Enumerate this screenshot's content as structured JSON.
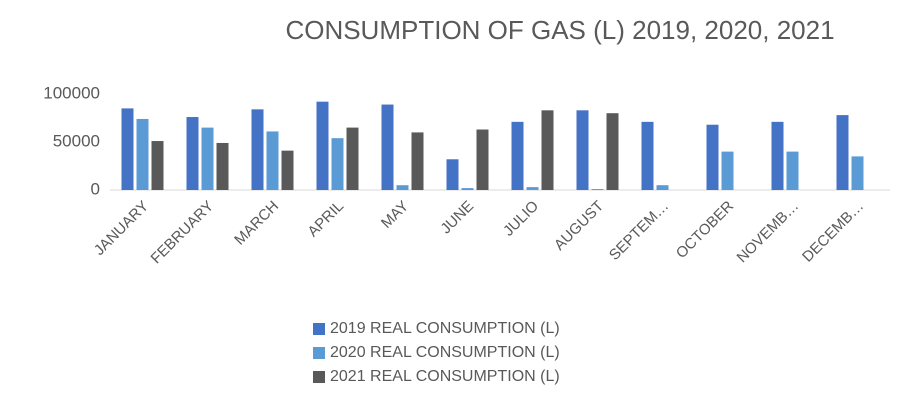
{
  "chart_data": {
    "type": "bar",
    "title": "CONSUMPTION OF GAS (L) 2019, 2020, 2021",
    "categories": [
      "JANUARY",
      "FEBRUARY",
      "MARCH",
      "APRIL",
      "MAY",
      "JUNE",
      "JULIO",
      "AUGUST",
      "SEPTEM…",
      "OCTOBER",
      "NOVEMB…",
      "DECEMB…"
    ],
    "series": [
      {
        "name": "2019 REAL CONSUMPTION (L)",
        "color": "#4472c4",
        "values": [
          85000,
          76000,
          84000,
          92000,
          89000,
          32000,
          71000,
          83000,
          71000,
          68000,
          71000,
          78000
        ]
      },
      {
        "name": "2020 REAL CONSUMPTION (L)",
        "color": "#5b9bd5",
        "values": [
          74000,
          65000,
          61000,
          54000,
          5000,
          2000,
          3000,
          1000,
          5000,
          40000,
          40000,
          35000
        ]
      },
      {
        "name": "2021 REAL CONSUMPTION (L)",
        "color": "#595959",
        "values": [
          51000,
          49000,
          41000,
          65000,
          60000,
          63000,
          83000,
          80000,
          null,
          null,
          null,
          null
        ]
      }
    ],
    "ylim": [
      0,
      100000
    ],
    "yticks": [
      0,
      50000,
      100000
    ],
    "grid": false
  }
}
